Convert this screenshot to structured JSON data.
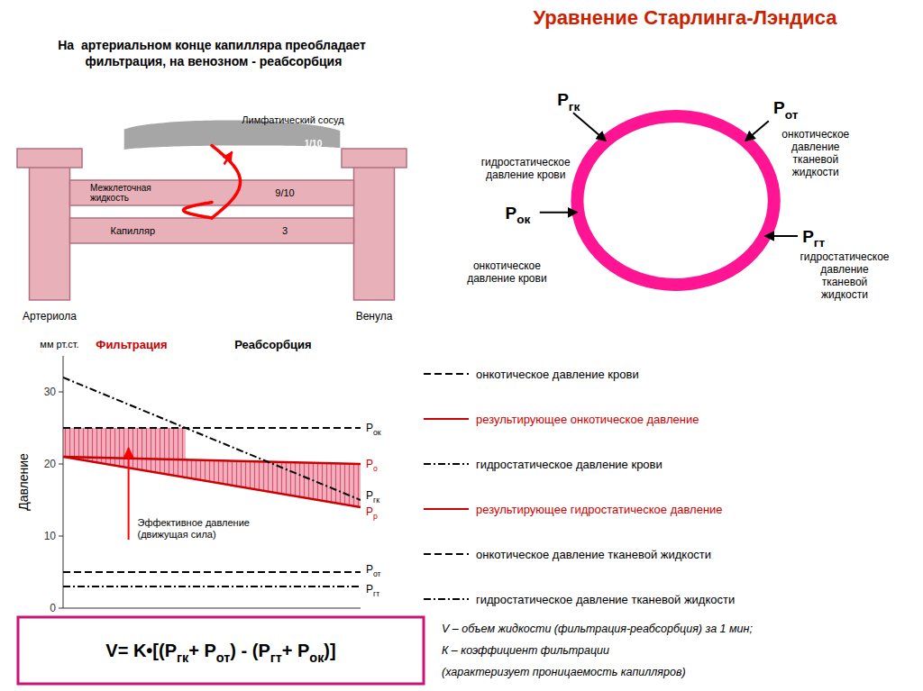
{
  "chart_data": {
    "type": "line",
    "title": "Уравнение Старлинга-Лэндиса",
    "title_color": "#cc2200",
    "subtitle": "На  артериальном конце капилляра преобладает\n фильтрация, на венозном - реабсорбция",
    "ylabel": "Давление",
    "x": [
      0,
      1
    ],
    "xlim": [
      0,
      1
    ],
    "ylim": [
      0,
      35
    ],
    "yticks": [
      0,
      10,
      20,
      30
    ],
    "tick_labels": "y",
    "grid": false,
    "legend": "right",
    "series": [
      {
        "name": "онкотическое давление крови",
        "color": "#000000",
        "line_style": "dashed",
        "values": [
          25,
          25
        ]
      },
      {
        "name": "результирующее онкотическое давление",
        "color": "#cc0000",
        "line_style": "solid",
        "values": [
          21,
          20
        ]
      },
      {
        "name": "гидростатическое давление крови",
        "color": "#000000",
        "line_style": "dashdot",
        "values": [
          32,
          15
        ]
      },
      {
        "name": "результирующее гидростатическое давление",
        "color": "#cc0000",
        "line_style": "solid",
        "values": [
          21,
          14
        ]
      },
      {
        "name": "онкотическое давление тканевой жидкости",
        "color": "#000000",
        "line_style": "dashed",
        "values": [
          5,
          5
        ]
      },
      {
        "name": "гидростатическое давление тканевой жидкости",
        "color": "#000000",
        "line_style": "dashdot",
        "values": [
          3,
          3
        ]
      }
    ],
    "annotations": {
      "line_labels": [
        "Pок",
        "Pо",
        "Pгк",
        "Pр",
        "Pот",
        "Pгт"
      ],
      "unit": "мм рт.ст.",
      "zones": [
        {
          "text": "Фильтрация",
          "color": "#cc0000"
        },
        {
          "text": "Реабсорбция",
          "color": "#000000"
        }
      ],
      "effective_pressure": {
        "text": "Эффективное давление\n(движущая сила)",
        "color": "#e05070"
      },
      "capillary_diagram": {
        "lymph_label": "Лимфатический сосуд",
        "interstitial_label": "Межклеточная\nжидкость",
        "capillary_label": "Капилляр",
        "arteriole_label": "Артериола",
        "venule_label": "Венула",
        "ratio1": "1/10",
        "ratio2": "9/10",
        "ratio3": "3",
        "wall_color": "#e8b0b8",
        "edge_color": "#b07080",
        "lymph_color": "#909090",
        "flow_color": "#ff0000"
      },
      "pressure_diagram": {
        "color": "#ff1493",
        "forces": [
          {
            "symbol": "Pгк",
            "text": "гидростатическое\nдавление крови"
          },
          {
            "symbol": "Pот",
            "text": "онкотическое\nдавление\nтканевой\nжидкости"
          },
          {
            "symbol": "Pок",
            "text": "онкотическое\nдавление крови"
          },
          {
            "symbol": "Pгт",
            "text": "гидростатическое\nдавление\nтканевой\nжидкости"
          }
        ]
      },
      "formula": {
        "text": "V= K•[(Pгк+ Pот) - (Pгт+ Pок)]",
        "color": "#cc1177",
        "notes": [
          "V – объем жидкости (фильтрация-реабсорбция) за 1 мин;",
          "К – коэффициент фильтрации",
          "(характеризует проницаемость капилляров)"
        ]
      }
    }
  }
}
